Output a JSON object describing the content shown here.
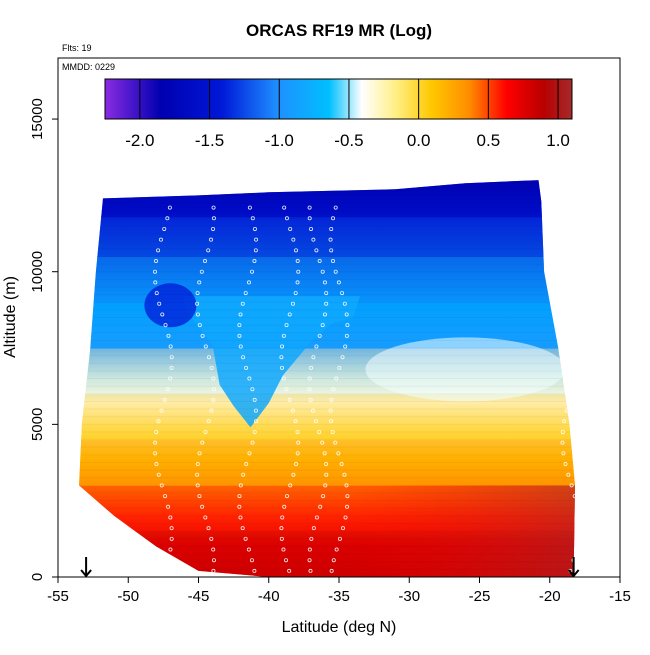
{
  "chart_data": {
    "type": "heatmap",
    "title": "ORCAS RF19 MR (Log)",
    "annotations": [
      "Flts: 19",
      "MMDD: 0229"
    ],
    "xlabel": "Latitude (deg N)",
    "ylabel": "Altitude (m)",
    "xlim": [
      -55,
      -15
    ],
    "ylim": [
      0,
      17000
    ],
    "xticks": [
      -55,
      -50,
      -45,
      -40,
      -35,
      -30,
      -25,
      -20,
      -15
    ],
    "yticks": [
      0,
      5000,
      10000,
      15000
    ],
    "colorbar": {
      "range": [
        -2.25,
        1.1
      ],
      "ticks": [
        -2.0,
        -1.5,
        -1.0,
        -0.5,
        0.0,
        0.5,
        1.0
      ],
      "tick_labels": [
        "-2.0",
        "-1.5",
        "-1.0",
        "-0.5",
        "0.0",
        "0.5",
        "1.0"
      ],
      "palette": [
        "#8a2be2",
        "#0000b0",
        "#0018d8",
        "#1e90ff",
        "#00bfff",
        "#ffffff",
        "#fff08a",
        "#ffc800",
        "#ff8c00",
        "#ff0000",
        "#b80000",
        "#a52a2a"
      ]
    },
    "domain_outline": {
      "left_edge": [
        [
          -53.5,
          3000
        ],
        [
          -53.3,
          5000
        ],
        [
          -52.7,
          7500
        ],
        [
          -52.3,
          10000
        ],
        [
          -51.8,
          12400
        ]
      ],
      "right_edge": [
        [
          -18.3,
          0
        ],
        [
          -18.2,
          3000
        ],
        [
          -18.6,
          5000
        ],
        [
          -19.4,
          7500
        ],
        [
          -20.4,
          10000
        ],
        [
          -20.6,
          12300
        ],
        [
          -20.8,
          13000
        ]
      ],
      "top_edge": [
        [
          -51.8,
          12400
        ],
        [
          -45.0,
          12500
        ],
        [
          -40.0,
          12600
        ],
        [
          -31.0,
          12700
        ],
        [
          -26.0,
          12900
        ],
        [
          -20.8,
          13000
        ]
      ],
      "bottom_edge": [
        [
          -53.5,
          3000
        ],
        [
          -51.0,
          2000
        ],
        [
          -48.0,
          1000
        ],
        [
          -45.0,
          200
        ],
        [
          -40.0,
          0
        ],
        [
          -18.3,
          0
        ]
      ]
    },
    "field_bands": [
      {
        "alt_range": [
          0,
          1500
        ],
        "log_mr": 0.75
      },
      {
        "alt_range": [
          1500,
          3000
        ],
        "log_mr": 0.55
      },
      {
        "alt_range": [
          3000,
          4500
        ],
        "log_mr": 0.25
      },
      {
        "alt_range": [
          4500,
          6000
        ],
        "log_mr": 0.0
      },
      {
        "alt_range": [
          6000,
          7500
        ],
        "log_mr": -0.35
      },
      {
        "alt_range": [
          7500,
          9000
        ],
        "log_mr": -1.1
      },
      {
        "alt_range": [
          9000,
          10500
        ],
        "log_mr": -1.3
      },
      {
        "alt_range": [
          10500,
          11800
        ],
        "log_mr": -1.6
      },
      {
        "alt_range": [
          11800,
          13000
        ],
        "log_mr": -1.95
      }
    ],
    "features": [
      {
        "name": "dry-tongue",
        "description": "dry blue intrusion descending between -44 and -36 deg to about 5000 m",
        "log_mr": -1.2
      },
      {
        "name": "dry-core",
        "description": "darker blue core near -47 deg around 9000 m",
        "log_mr": -1.7
      }
    ],
    "flight_tracks_lat": [
      -47.5,
      -44.5,
      -41.5,
      -38.5,
      -36.5,
      -35.0,
      -18.5
    ],
    "markers": [
      {
        "symbol": "down-arrow",
        "x": -53.0,
        "y": 0
      },
      {
        "symbol": "down-arrow",
        "x": -18.3,
        "y": 0
      }
    ]
  }
}
